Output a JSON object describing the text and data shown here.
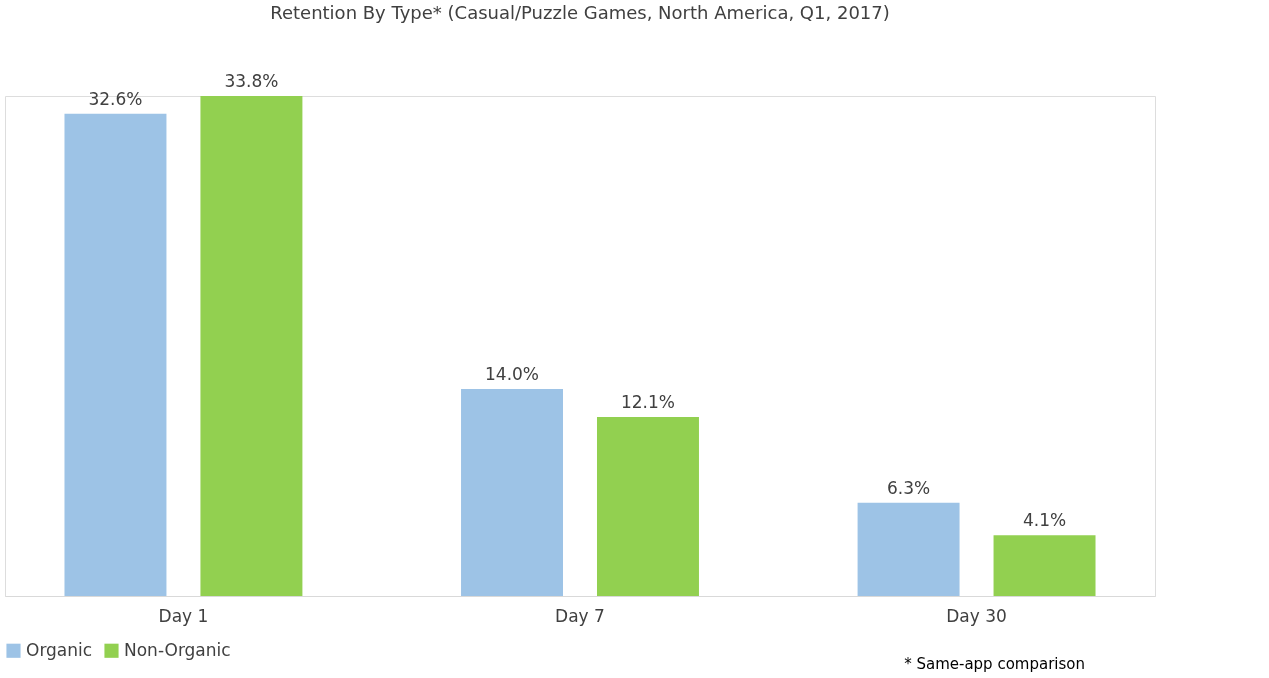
{
  "chart_data": {
    "type": "bar",
    "title": "Retention By Type* (Casual/Puzzle Games, North America, Q1, 2017)",
    "categories": [
      "Day 1",
      "Day 7",
      "Day 30"
    ],
    "series": [
      {
        "name": "Organic",
        "color": "#9dc3e6",
        "values": [
          32.6,
          14.0,
          6.3
        ],
        "value_labels": [
          "32.6%",
          "14.0%",
          "6.3%"
        ]
      },
      {
        "name": "Non-Organic",
        "color": "#92d050",
        "values": [
          33.8,
          12.1,
          4.1
        ],
        "value_labels": [
          "33.8%",
          "12.1%",
          "4.1%"
        ]
      }
    ],
    "annotations": [
      "* Same-app comparison"
    ],
    "legend": "bottom",
    "grid": false
  }
}
